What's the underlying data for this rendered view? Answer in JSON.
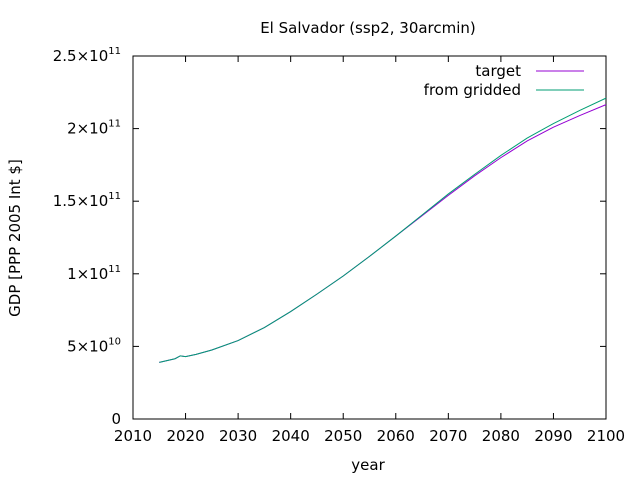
{
  "chart_data": {
    "type": "line",
    "title": "El Salvador (ssp2, 30arcmin)",
    "xlabel": "year",
    "ylabel": "GDP [PPP 2005 Int $]",
    "xlim": [
      2010,
      2100
    ],
    "ylim": [
      0,
      250000000000
    ],
    "grid": false,
    "legend_position": "top-right",
    "x_ticks": [
      {
        "value": 2010,
        "label": "2010"
      },
      {
        "value": 2020,
        "label": "2020"
      },
      {
        "value": 2030,
        "label": "2030"
      },
      {
        "value": 2040,
        "label": "2040"
      },
      {
        "value": 2050,
        "label": "2050"
      },
      {
        "value": 2060,
        "label": "2060"
      },
      {
        "value": 2070,
        "label": "2070"
      },
      {
        "value": 2080,
        "label": "2080"
      },
      {
        "value": 2090,
        "label": "2090"
      },
      {
        "value": 2100,
        "label": "2100"
      }
    ],
    "y_ticks": [
      {
        "value": 0,
        "label": "0",
        "exp": ""
      },
      {
        "value": 50000000000,
        "label": "5×10",
        "exp": "10"
      },
      {
        "value": 100000000000,
        "label": "1×10",
        "exp": "11"
      },
      {
        "value": 150000000000,
        "label": "1.5×10",
        "exp": "11"
      },
      {
        "value": 200000000000,
        "label": "2×10",
        "exp": "11"
      },
      {
        "value": 250000000000,
        "label": "2.5×10",
        "exp": "11"
      }
    ],
    "x": [
      2015,
      2018,
      2019,
      2020,
      2022,
      2025,
      2030,
      2035,
      2040,
      2045,
      2050,
      2055,
      2060,
      2065,
      2070,
      2075,
      2080,
      2085,
      2090,
      2095,
      2100
    ],
    "series": [
      {
        "name": "target",
        "color": "#9400d3",
        "values": [
          39000000000,
          41500000000,
          43500000000,
          43000000000,
          44500000000,
          47500000000,
          54000000000,
          63000000000,
          74000000000,
          86000000000,
          98500000000,
          112000000000,
          126000000000,
          140000000000,
          154000000000,
          167500000000,
          180000000000,
          191500000000,
          201000000000,
          209000000000,
          216500000000
        ]
      },
      {
        "name": "from gridded",
        "color": "#009e73",
        "values": [
          39000000000,
          41500000000,
          43500000000,
          43000000000,
          44500000000,
          47500000000,
          54000000000,
          63000000000,
          74000000000,
          86000000000,
          98500000000,
          112000000000,
          126000000000,
          140500000000,
          155000000000,
          168500000000,
          181500000000,
          193500000000,
          203500000000,
          212500000000,
          221000000000
        ]
      }
    ]
  }
}
